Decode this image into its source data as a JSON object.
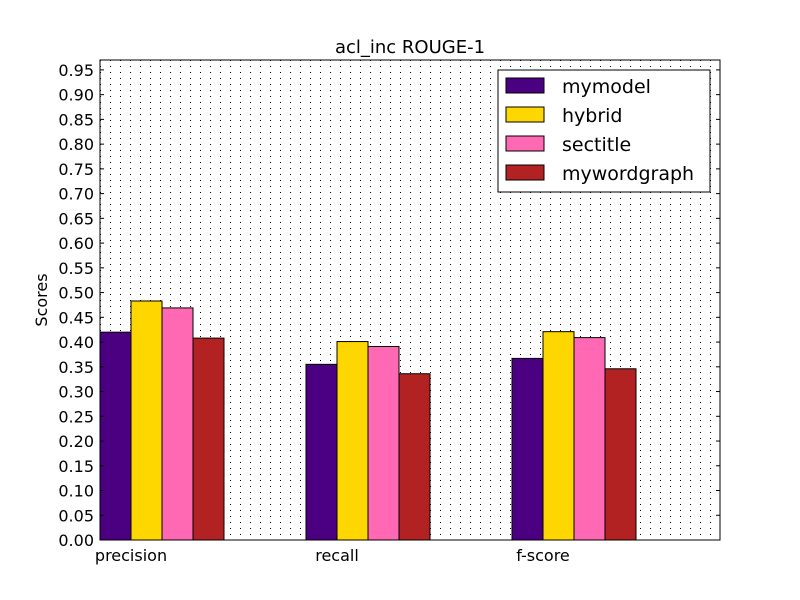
{
  "chart_data": {
    "type": "bar",
    "title": "acl_inc ROUGE-1",
    "xlabel": "",
    "ylabel": "Scores",
    "categories": [
      "precision",
      "recall",
      "f-score"
    ],
    "ylim": [
      0,
      0.97
    ],
    "yticks": [
      "0.00",
      "0.05",
      "0.10",
      "0.15",
      "0.20",
      "0.25",
      "0.30",
      "0.35",
      "0.40",
      "0.45",
      "0.50",
      "0.55",
      "0.60",
      "0.65",
      "0.70",
      "0.75",
      "0.80",
      "0.85",
      "0.90",
      "0.95"
    ],
    "grid": true,
    "legend_position": "top-right",
    "series": [
      {
        "name": "mymodel",
        "color": "#4b0082",
        "values": [
          0.42,
          0.355,
          0.367
        ]
      },
      {
        "name": "hybrid",
        "color": "#ffd700",
        "values": [
          0.483,
          0.401,
          0.421
        ]
      },
      {
        "name": "sectitle",
        "color": "#ff69b4",
        "values": [
          0.469,
          0.391,
          0.409
        ]
      },
      {
        "name": "mywordgraph",
        "color": "#b22222",
        "values": [
          0.408,
          0.336,
          0.346
        ]
      }
    ]
  }
}
